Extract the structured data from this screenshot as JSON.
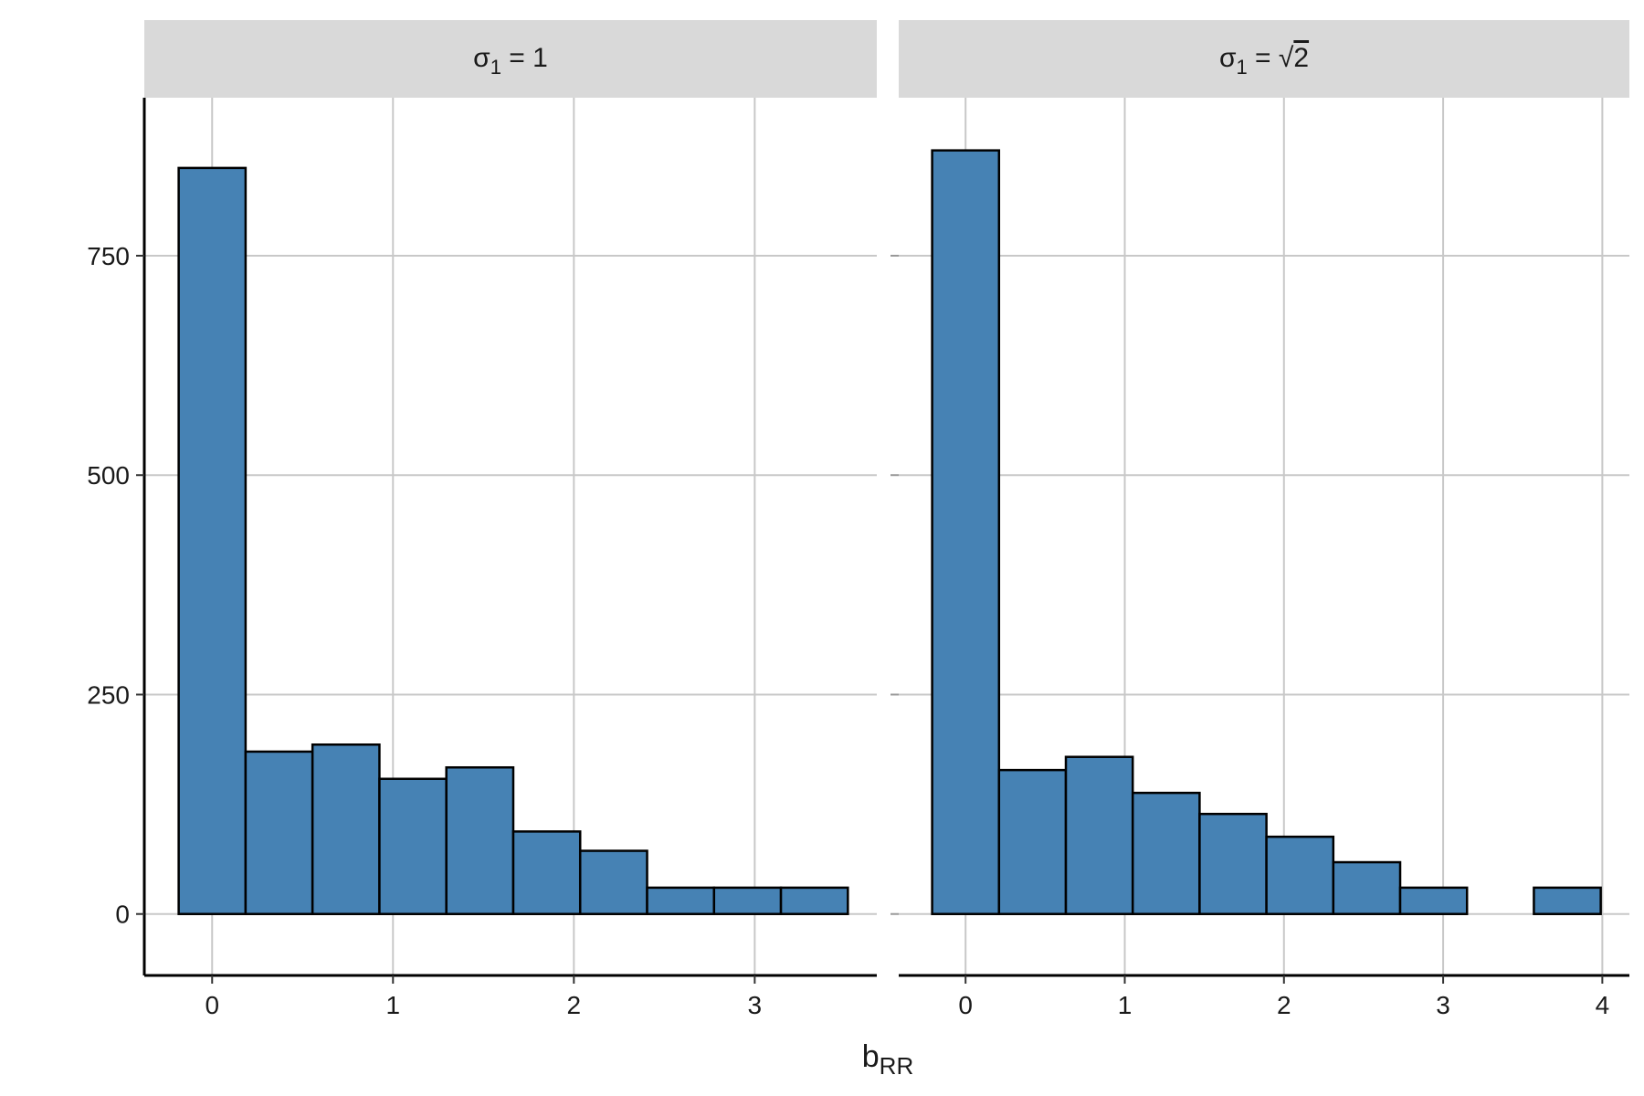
{
  "chart_data": {
    "type": "bar",
    "xlabel": "b",
    "xlabel_subscript": "RR",
    "ylabel": "",
    "y_ticks": [
      "0",
      "250",
      "500",
      "750"
    ],
    "y_tick_values": [
      0,
      250,
      500,
      750
    ],
    "ylim": [
      -70,
      930
    ],
    "grid": true,
    "legend": "none",
    "bar_fill": "#4682B4",
    "bar_stroke": "#000000",
    "strip_fill": "#D9D9D9",
    "grid_color": "#C8C8C8",
    "panels": [
      {
        "strip": {
          "symbol": "σ",
          "subscript": "1",
          "rest": " = 1"
        },
        "x_ticks": [
          "0",
          "1",
          "2",
          "3"
        ],
        "x_tick_values": [
          0,
          1,
          2,
          3
        ],
        "xlim": [
          -0.375,
          3.675
        ],
        "bars": [
          {
            "x0": -0.185,
            "x1": 0.185,
            "count": 850
          },
          {
            "x0": 0.185,
            "x1": 0.555,
            "count": 185
          },
          {
            "x0": 0.555,
            "x1": 0.925,
            "count": 193
          },
          {
            "x0": 0.925,
            "x1": 1.295,
            "count": 154
          },
          {
            "x0": 1.295,
            "x1": 1.665,
            "count": 167
          },
          {
            "x0": 1.665,
            "x1": 2.035,
            "count": 94
          },
          {
            "x0": 2.035,
            "x1": 2.405,
            "count": 72
          },
          {
            "x0": 2.405,
            "x1": 2.775,
            "count": 30
          },
          {
            "x0": 2.775,
            "x1": 3.145,
            "count": 30
          },
          {
            "x0": 3.145,
            "x1": 3.515,
            "count": 30
          }
        ]
      },
      {
        "strip": {
          "symbol": "σ",
          "subscript": "1",
          "rest": " = ",
          "radical": "2"
        },
        "x_ticks": [
          "0",
          "1",
          "2",
          "3",
          "4"
        ],
        "x_tick_values": [
          0,
          1,
          2,
          3,
          4
        ],
        "xlim": [
          -0.42,
          4.17
        ],
        "bars": [
          {
            "x0": -0.21,
            "x1": 0.21,
            "count": 870
          },
          {
            "x0": 0.21,
            "x1": 0.63,
            "count": 164
          },
          {
            "x0": 0.63,
            "x1": 1.05,
            "count": 179
          },
          {
            "x0": 1.05,
            "x1": 1.47,
            "count": 138
          },
          {
            "x0": 1.47,
            "x1": 1.89,
            "count": 114
          },
          {
            "x0": 1.89,
            "x1": 2.31,
            "count": 88
          },
          {
            "x0": 2.31,
            "x1": 2.73,
            "count": 59
          },
          {
            "x0": 2.73,
            "x1": 3.15,
            "count": 30
          },
          {
            "x0": 3.15,
            "x1": 3.57,
            "count": 0
          },
          {
            "x0": 3.57,
            "x1": 3.99,
            "count": 30
          }
        ]
      }
    ]
  }
}
